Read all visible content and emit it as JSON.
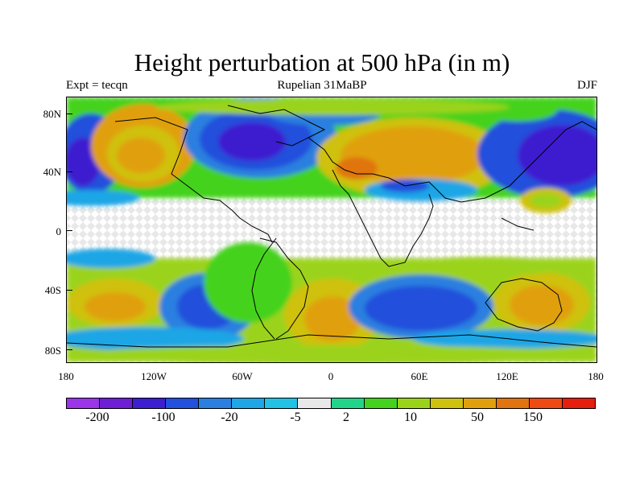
{
  "title": "Height perturbation at 500 hPa (in m)",
  "subtitle_left": "Expt = tecqn",
  "subtitle_center": "Rupelian  31MaBP",
  "subtitle_right": "DJF",
  "lat_ticks": [
    "80N",
    "40N",
    "0",
    "40S",
    "80S"
  ],
  "lon_ticks": [
    "180",
    "120W",
    "60W",
    "0",
    "60E",
    "120E",
    "180"
  ],
  "colorbar": {
    "colors": [
      "#9a35e8",
      "#6e1fd6",
      "#3c1fd0",
      "#2350dc",
      "#2b7fe0",
      "#1ea6e6",
      "#22c2e4",
      "#e8e8e8",
      "#22d48a",
      "#44d21e",
      "#9bd31a",
      "#cfc10f",
      "#e0a00e",
      "#e07410",
      "#ee4a14",
      "#e51e0e"
    ],
    "labels": [
      "-200",
      "-100",
      "-20",
      "-5",
      "2",
      "10",
      "50",
      "150"
    ]
  },
  "map_colors": {
    "background": "#e8e8e8",
    "hatch": "#ffffff",
    "coast": "#000000"
  }
}
